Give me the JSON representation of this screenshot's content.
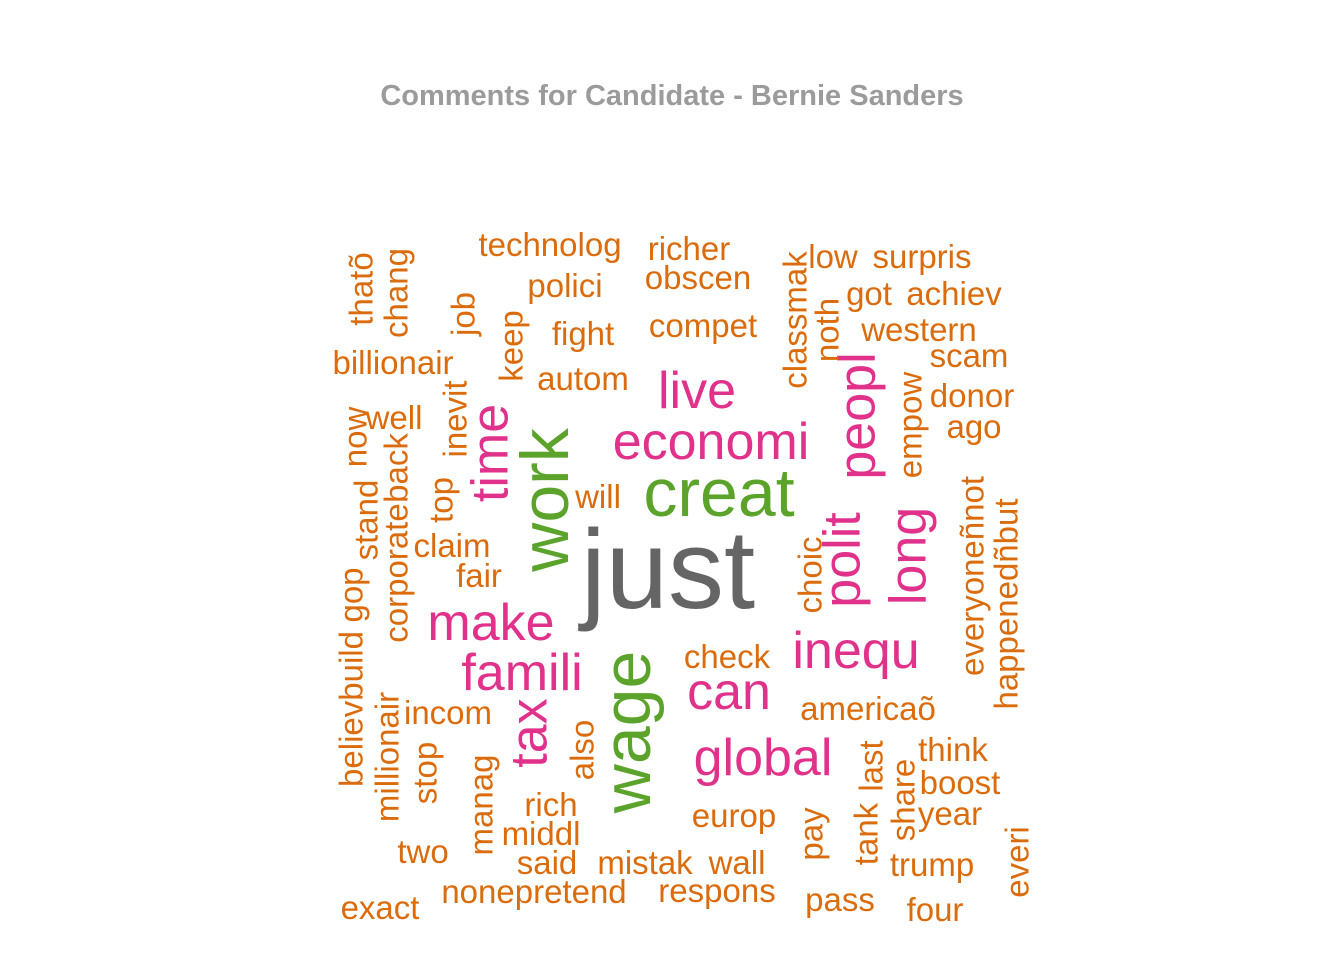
{
  "chart_data": {
    "type": "wordcloud",
    "title": "Comments for Candidate - Bernie Sanders",
    "colors": {
      "gray": "#656565",
      "green": "#5ba32b",
      "pink": "#e0318b",
      "orange": "#db6c0d"
    },
    "words": [
      {
        "text": "just",
        "tier": 5,
        "color": "gray"
      },
      {
        "text": "creat",
        "tier": 4,
        "color": "green"
      },
      {
        "text": "work",
        "tier": 4,
        "color": "green"
      },
      {
        "text": "wage",
        "tier": 4,
        "color": "green"
      },
      {
        "text": "economi",
        "tier": 3,
        "color": "pink"
      },
      {
        "text": "live",
        "tier": 3,
        "color": "pink"
      },
      {
        "text": "peopl",
        "tier": 3,
        "color": "pink"
      },
      {
        "text": "polit",
        "tier": 3,
        "color": "pink"
      },
      {
        "text": "long",
        "tier": 3,
        "color": "pink"
      },
      {
        "text": "time",
        "tier": 3,
        "color": "pink"
      },
      {
        "text": "make",
        "tier": 3,
        "color": "pink"
      },
      {
        "text": "famili",
        "tier": 3,
        "color": "pink"
      },
      {
        "text": "inequ",
        "tier": 3,
        "color": "pink"
      },
      {
        "text": "can",
        "tier": 3,
        "color": "pink"
      },
      {
        "text": "global",
        "tier": 3,
        "color": "pink"
      },
      {
        "text": "tax",
        "tier": 3,
        "color": "pink"
      },
      {
        "text": "technolog",
        "tier": 1,
        "color": "orange"
      },
      {
        "text": "richer",
        "tier": 1,
        "color": "orange"
      },
      {
        "text": "obscen",
        "tier": 1,
        "color": "orange"
      },
      {
        "text": "polici",
        "tier": 1,
        "color": "orange"
      },
      {
        "text": "fight",
        "tier": 1,
        "color": "orange"
      },
      {
        "text": "compet",
        "tier": 1,
        "color": "orange"
      },
      {
        "text": "autom",
        "tier": 1,
        "color": "orange"
      },
      {
        "text": "low",
        "tier": 1,
        "color": "orange"
      },
      {
        "text": "surpris",
        "tier": 1,
        "color": "orange"
      },
      {
        "text": "got",
        "tier": 1,
        "color": "orange"
      },
      {
        "text": "achiev",
        "tier": 1,
        "color": "orange"
      },
      {
        "text": "western",
        "tier": 1,
        "color": "orange"
      },
      {
        "text": "scam",
        "tier": 1,
        "color": "orange"
      },
      {
        "text": "donor",
        "tier": 1,
        "color": "orange"
      },
      {
        "text": "ago",
        "tier": 1,
        "color": "orange"
      },
      {
        "text": "billionair",
        "tier": 1,
        "color": "orange"
      },
      {
        "text": "well",
        "tier": 1,
        "color": "orange"
      },
      {
        "text": "will",
        "tier": 1,
        "color": "orange"
      },
      {
        "text": "claim",
        "tier": 1,
        "color": "orange"
      },
      {
        "text": "fair",
        "tier": 1,
        "color": "orange"
      },
      {
        "text": "check",
        "tier": 1,
        "color": "orange"
      },
      {
        "text": "incom",
        "tier": 1,
        "color": "orange"
      },
      {
        "text": "americaõ",
        "tier": 1,
        "color": "orange"
      },
      {
        "text": "think",
        "tier": 1,
        "color": "orange"
      },
      {
        "text": "boost",
        "tier": 1,
        "color": "orange"
      },
      {
        "text": "year",
        "tier": 1,
        "color": "orange"
      },
      {
        "text": "rich",
        "tier": 1,
        "color": "orange"
      },
      {
        "text": "middl",
        "tier": 1,
        "color": "orange"
      },
      {
        "text": "europ",
        "tier": 1,
        "color": "orange"
      },
      {
        "text": "two",
        "tier": 1,
        "color": "orange"
      },
      {
        "text": "said",
        "tier": 1,
        "color": "orange"
      },
      {
        "text": "mistak",
        "tier": 1,
        "color": "orange"
      },
      {
        "text": "wall",
        "tier": 1,
        "color": "orange"
      },
      {
        "text": "trump",
        "tier": 1,
        "color": "orange"
      },
      {
        "text": "nonepretend",
        "tier": 1,
        "color": "orange"
      },
      {
        "text": "respons",
        "tier": 1,
        "color": "orange"
      },
      {
        "text": "exact",
        "tier": 1,
        "color": "orange"
      },
      {
        "text": "pass",
        "tier": 1,
        "color": "orange"
      },
      {
        "text": "four",
        "tier": 1,
        "color": "orange"
      },
      {
        "text": "thatõ",
        "tier": 1,
        "color": "orange",
        "vertical": true
      },
      {
        "text": "chang",
        "tier": 1,
        "color": "orange",
        "vertical": true
      },
      {
        "text": "job",
        "tier": 1,
        "color": "orange",
        "vertical": true
      },
      {
        "text": "keep",
        "tier": 1,
        "color": "orange",
        "vertical": true
      },
      {
        "text": "classmak",
        "tier": 1,
        "color": "orange",
        "vertical": true
      },
      {
        "text": "noth",
        "tier": 1,
        "color": "orange",
        "vertical": true
      },
      {
        "text": "inevit",
        "tier": 1,
        "color": "orange",
        "vertical": true
      },
      {
        "text": "now",
        "tier": 1,
        "color": "orange",
        "vertical": true
      },
      {
        "text": "empow",
        "tier": 1,
        "color": "orange",
        "vertical": true
      },
      {
        "text": "back",
        "tier": 1,
        "color": "orange",
        "vertical": true
      },
      {
        "text": "top",
        "tier": 1,
        "color": "orange",
        "vertical": true
      },
      {
        "text": "stand",
        "tier": 1,
        "color": "orange",
        "vertical": true
      },
      {
        "text": "corporate",
        "tier": 1,
        "color": "orange",
        "vertical": true
      },
      {
        "text": "everyoneñnot",
        "tier": 1,
        "color": "orange",
        "vertical": true
      },
      {
        "text": "happenedñbut",
        "tier": 1,
        "color": "orange",
        "vertical": true
      },
      {
        "text": "gop",
        "tier": 1,
        "color": "orange",
        "vertical": true
      },
      {
        "text": "believbuild",
        "tier": 1,
        "color": "orange",
        "vertical": true
      },
      {
        "text": "millionair",
        "tier": 1,
        "color": "orange",
        "vertical": true
      },
      {
        "text": "choic",
        "tier": 1,
        "color": "orange",
        "vertical": true
      },
      {
        "text": "stop",
        "tier": 1,
        "color": "orange",
        "vertical": true
      },
      {
        "text": "also",
        "tier": 1,
        "color": "orange",
        "vertical": true
      },
      {
        "text": "manag",
        "tier": 1,
        "color": "orange",
        "vertical": true
      },
      {
        "text": "last",
        "tier": 1,
        "color": "orange",
        "vertical": true
      },
      {
        "text": "share",
        "tier": 1,
        "color": "orange",
        "vertical": true
      },
      {
        "text": "tank",
        "tier": 1,
        "color": "orange",
        "vertical": true
      },
      {
        "text": "pay",
        "tier": 1,
        "color": "orange",
        "vertical": true
      },
      {
        "text": "everi",
        "tier": 1,
        "color": "orange",
        "vertical": true
      }
    ]
  }
}
